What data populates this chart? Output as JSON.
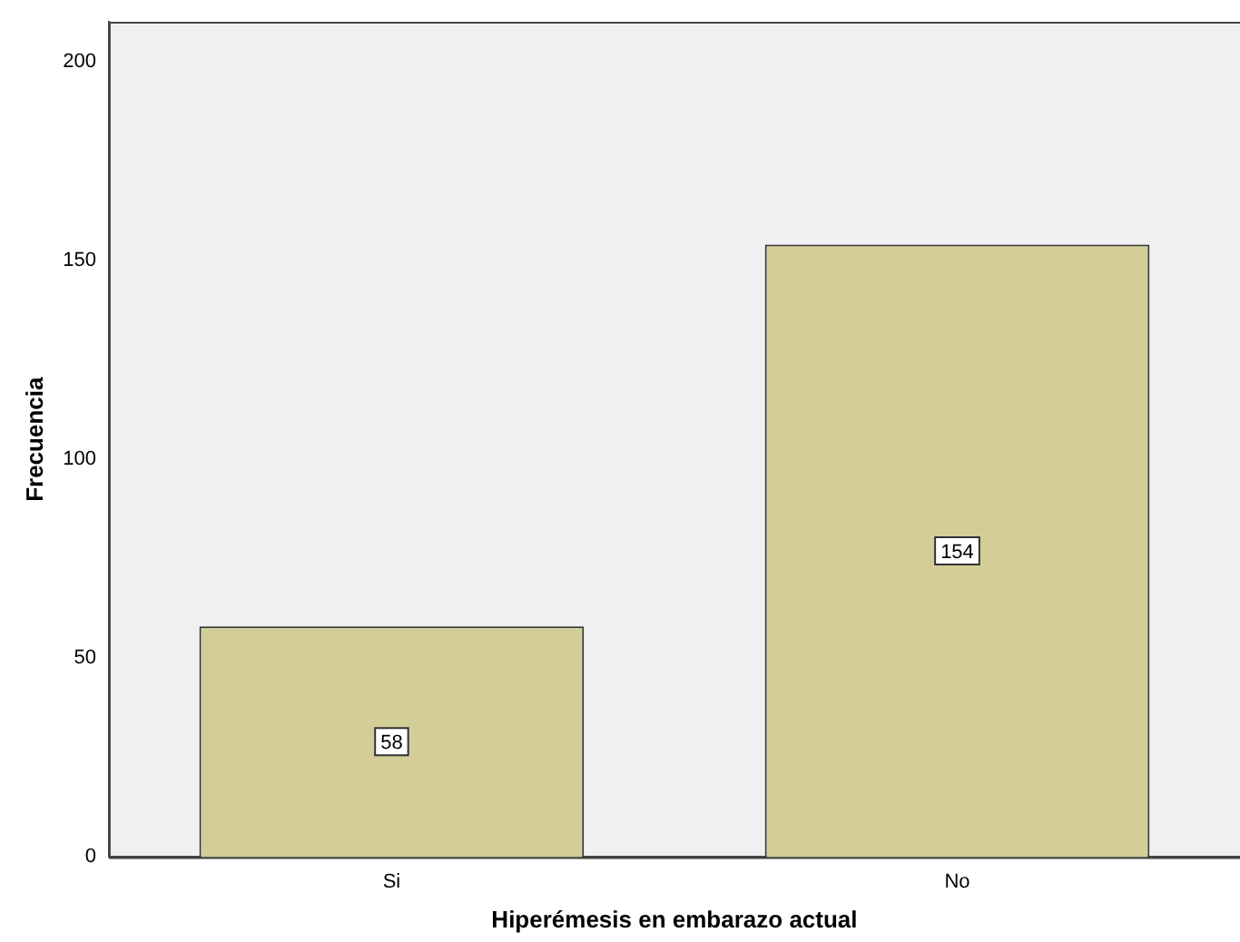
{
  "chart_data": {
    "type": "bar",
    "categories": [
      "Si",
      "No"
    ],
    "values": [
      58,
      154
    ],
    "color": "#d3ce97",
    "xlabel": "Hiperémesis en embarazo actual",
    "ylabel": "Frecuencia",
    "ylim": [
      0,
      210
    ],
    "yticks": [
      0,
      50,
      100,
      150,
      200
    ],
    "grid": false,
    "legend": false,
    "data_labels": true
  }
}
